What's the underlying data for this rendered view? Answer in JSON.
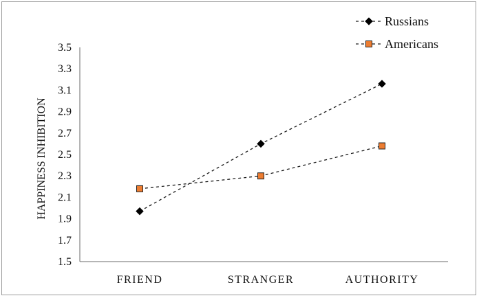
{
  "chart_data": {
    "type": "line",
    "categories": [
      "FRIEND",
      "STRANGER",
      "AUTHORITY"
    ],
    "series": [
      {
        "name": "Russians",
        "values": [
          1.97,
          2.6,
          3.16
        ],
        "marker": "diamond",
        "color": "#000000"
      },
      {
        "name": "Americans",
        "values": [
          2.18,
          2.3,
          2.58
        ],
        "marker": "square",
        "color": "#ed7d31"
      }
    ],
    "ylabel": "HAPPINESS INHIBITION",
    "xlabel": "",
    "ylim": [
      1.5,
      3.5
    ],
    "yticks": [
      "1.5",
      "1.7",
      "1.9",
      "2.1",
      "2.3",
      "2.5",
      "2.7",
      "2.9",
      "3.1",
      "3.3",
      "3.5"
    ],
    "grid": false,
    "legend_position": "top-right",
    "line_style": "dashed"
  }
}
